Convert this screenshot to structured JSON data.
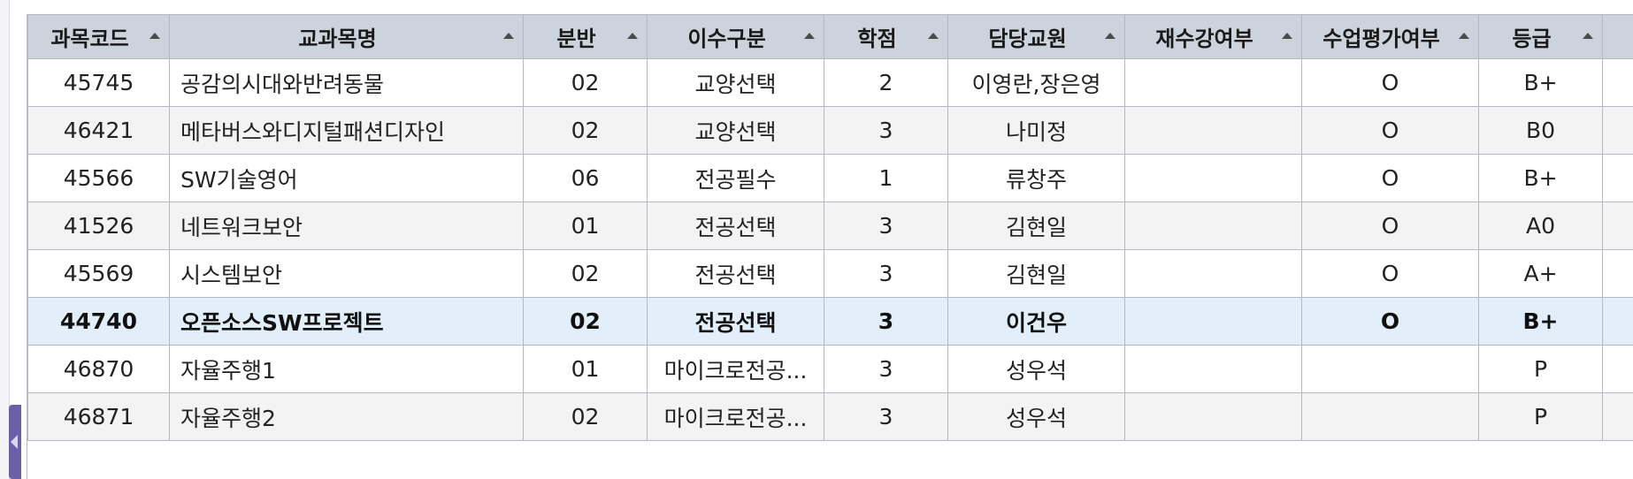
{
  "columns": [
    "과목코드",
    "교과목명",
    "분반",
    "이수구분",
    "학점",
    "담당교원",
    "재수강여부",
    "수업평가여부",
    "등급",
    ""
  ],
  "rows": [
    [
      "45745",
      "공감의시대와반려동물",
      "02",
      "교양선택",
      "2",
      "이영란,장은영",
      "",
      "O",
      "B+",
      ""
    ],
    [
      "46421",
      "메타버스와디지털패션디자인",
      "02",
      "교양선택",
      "3",
      "나미정",
      "",
      "O",
      "B0",
      ""
    ],
    [
      "45566",
      "SW기술영어",
      "06",
      "전공필수",
      "1",
      "류창주",
      "",
      "O",
      "B+",
      ""
    ],
    [
      "41526",
      "네트워크보안",
      "01",
      "전공선택",
      "3",
      "김현일",
      "",
      "O",
      "A0",
      ""
    ],
    [
      "45569",
      "시스템보안",
      "02",
      "전공선택",
      "3",
      "김현일",
      "",
      "O",
      "A+",
      ""
    ],
    [
      "44740",
      "오픈소스SW프로젝트",
      "02",
      "전공선택",
      "3",
      "이건우",
      "",
      "O",
      "B+",
      ""
    ],
    [
      "46870",
      "자율주행1",
      "01",
      "마이크로전공...",
      "3",
      "성우석",
      "",
      "",
      "P",
      ""
    ],
    [
      "46871",
      "자율주행2",
      "02",
      "마이크로전공...",
      "3",
      "성우석",
      "",
      "",
      "P",
      ""
    ]
  ],
  "selected_row": 5
}
